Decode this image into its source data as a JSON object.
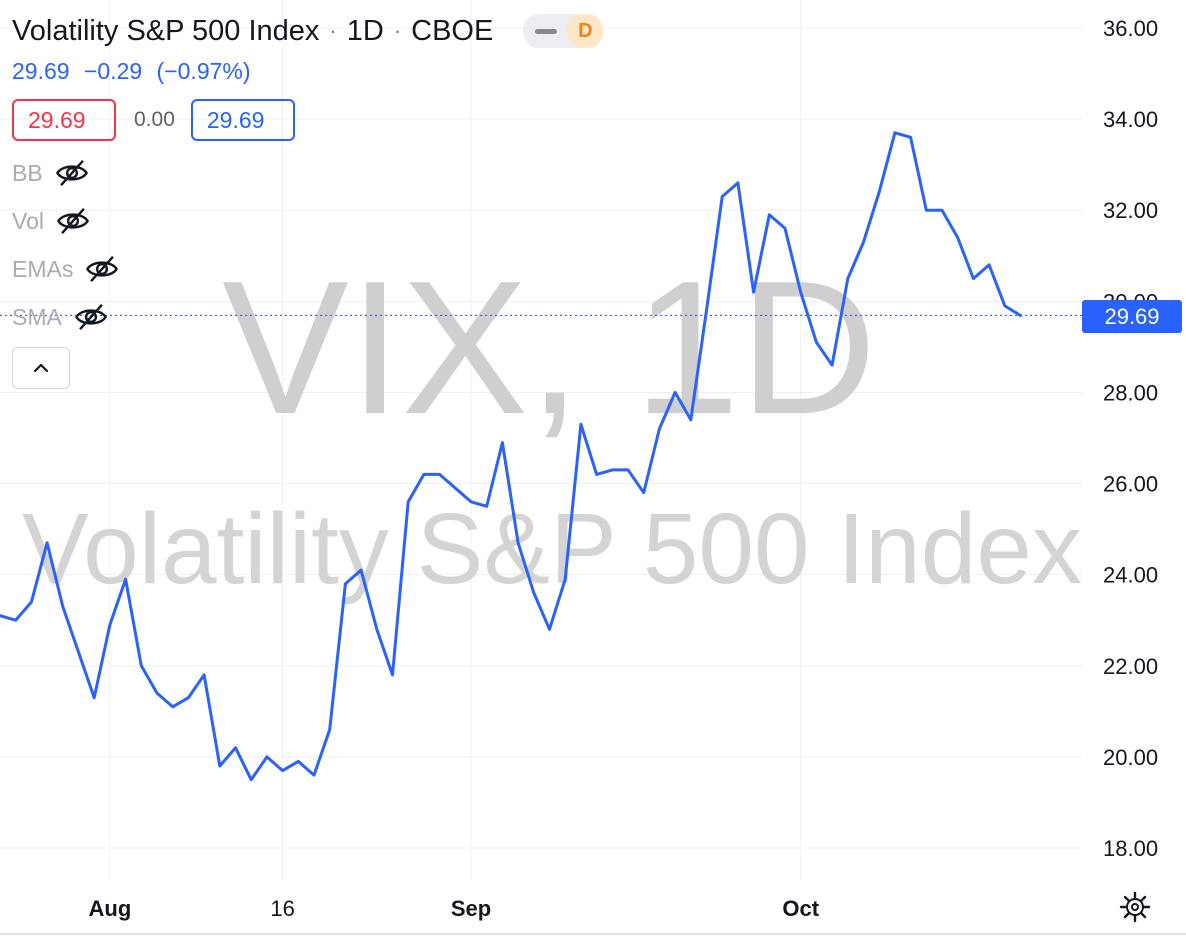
{
  "header": {
    "symbol_name": "Volatility S&P 500 Index",
    "interval": "1D",
    "exchange": "CBOE",
    "dash_badge": "—",
    "interval_badge": "D"
  },
  "quote": {
    "last": "29.69",
    "change": "−0.29",
    "change_percent": "(−0.97%)",
    "bid": "29.69",
    "spread": "0.00",
    "ask": "29.69"
  },
  "indicators": [
    {
      "label": "BB",
      "icon": "eye-off-icon"
    },
    {
      "label": "Vol",
      "icon": "eye-off-icon"
    },
    {
      "label": "EMAs",
      "icon": "eye-off-icon"
    },
    {
      "label": "SMA",
      "icon": "eye-off-icon"
    }
  ],
  "colors": {
    "line": "#2962ff",
    "price_tag": "#2962ff",
    "negative": "#f23645",
    "watermark": "#cfcfcf"
  },
  "watermark": {
    "line1": "VIX, 1D",
    "line2": "Volatility S&P 500 Index"
  },
  "price_tag": "29.69",
  "chart_data": {
    "type": "line",
    "title": "Volatility S&P 500 Index · 1D · CBOE",
    "ylim": [
      17.2,
      36.6
    ],
    "y_ticks": [
      "18.00",
      "20.00",
      "22.00",
      "24.00",
      "26.00",
      "28.00",
      "30.00",
      "32.00",
      "34.00",
      "36.00"
    ],
    "x_labels": [
      {
        "label": "Aug",
        "index": 7,
        "bold": true
      },
      {
        "label": "16",
        "index": 18,
        "bold": false
      },
      {
        "label": "Sep",
        "index": 30,
        "bold": true
      },
      {
        "label": "Oct",
        "index": 51,
        "bold": true
      }
    ],
    "last_value": 29.69,
    "series": [
      {
        "values": [
          23.1,
          23.0,
          23.4,
          24.7,
          23.3,
          22.3,
          21.3,
          22.9,
          23.9,
          22.0,
          21.4,
          21.1,
          21.3,
          21.8,
          19.8,
          20.2,
          19.5,
          20.0,
          19.7,
          19.9,
          19.6,
          20.6,
          23.8,
          24.1,
          22.8,
          21.8,
          25.6,
          26.2,
          26.2,
          25.9,
          25.6,
          25.5,
          26.9,
          24.7,
          23.6,
          22.8,
          23.9,
          27.3,
          26.2,
          26.3,
          26.3,
          25.8,
          27.2,
          28.0,
          27.4,
          29.8,
          32.3,
          32.6,
          30.2,
          31.9,
          31.6,
          30.2,
          29.1,
          28.6,
          30.5,
          31.3,
          32.4,
          33.7,
          33.6,
          32.0,
          32.0,
          31.4,
          30.5,
          30.8,
          29.9,
          29.69
        ]
      }
    ]
  }
}
